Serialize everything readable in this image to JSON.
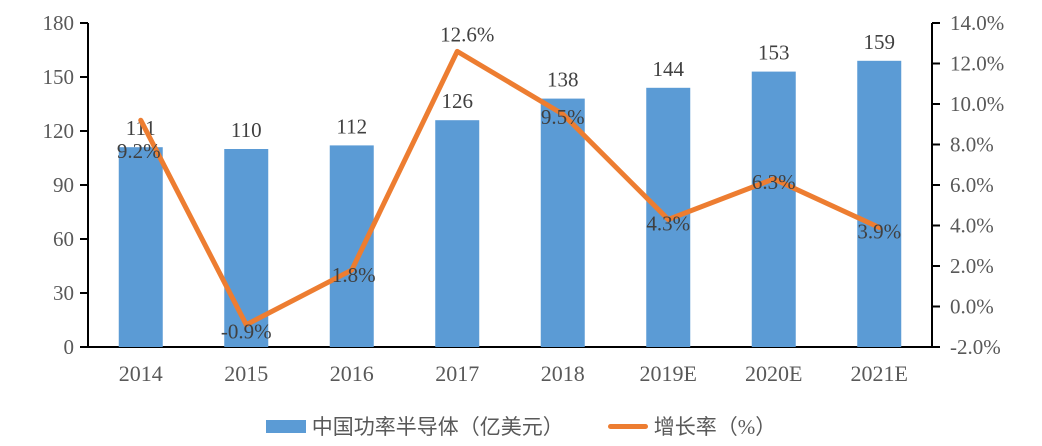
{
  "chart_data": {
    "type": "combo",
    "categories": [
      "2014",
      "2015",
      "2016",
      "2017",
      "2018",
      "2019E",
      "2020E",
      "2021E"
    ],
    "series": [
      {
        "name": "中国功率半导体（亿美元）",
        "type": "bar",
        "axis": "left",
        "color": "#5B9BD5",
        "values": [
          111,
          110,
          112,
          126,
          138,
          144,
          153,
          159
        ],
        "labels": [
          "111",
          "110",
          "112",
          "126",
          "138",
          "144",
          "153",
          "159"
        ]
      },
      {
        "name": "增长率（%）",
        "type": "line",
        "axis": "right",
        "color": "#ED7D31",
        "values": [
          9.2,
          -0.9,
          1.8,
          12.6,
          9.5,
          4.3,
          6.3,
          3.9
        ],
        "labels": [
          "9.2%",
          "-0.9%",
          "1.8%",
          "12.6%",
          "9.5%",
          "4.3%",
          "6.3%",
          "3.9%"
        ]
      }
    ],
    "left_axis": {
      "min": 0,
      "max": 180,
      "step": 30,
      "tick_labels": [
        "0",
        "30",
        "60",
        "90",
        "120",
        "150",
        "180"
      ]
    },
    "right_axis": {
      "min": -2,
      "max": 14,
      "step": 2,
      "tick_labels": [
        "-2.0%",
        "0.0%",
        "2.0%",
        "4.0%",
        "6.0%",
        "8.0%",
        "10.0%",
        "12.0%",
        "14.0%"
      ]
    },
    "grid": false,
    "legend_position": "bottom"
  },
  "colors": {
    "bar": "#5B9BD5",
    "line": "#ED7D31",
    "axis_line": "#000000",
    "tick_text": "#595959",
    "data_label_text": "#404040",
    "background": "#FFFFFF"
  }
}
